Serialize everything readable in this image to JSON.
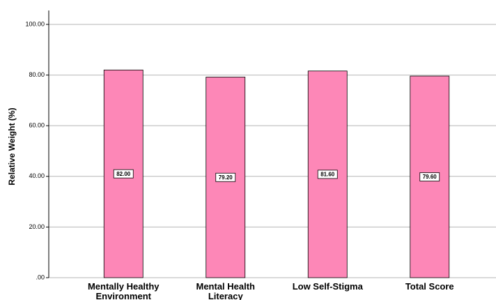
{
  "chart_data": {
    "type": "bar",
    "y_label": "Relative Weight (%)",
    "categories": [
      "Mentally Healthy Environment",
      "Mental Health Literacy",
      "Low Self-Stigma",
      "Total Score"
    ],
    "values": [
      82,
      79.2,
      81.6,
      79.6
    ],
    "value_labels": [
      "82.00",
      "79.20",
      "81.60",
      "79.60"
    ],
    "color": "#fd87b7",
    "ylim": [
      0,
      105.5
    ],
    "yticks": [
      {
        "value": 0,
        "label": ".00"
      },
      {
        "value": 20,
        "label": "20.00"
      },
      {
        "value": 40,
        "label": "40.00"
      },
      {
        "value": 60,
        "label": "60.00"
      },
      {
        "value": 80,
        "label": "80.00"
      },
      {
        "value": 100,
        "label": "100.00"
      }
    ],
    "grid": true
  }
}
